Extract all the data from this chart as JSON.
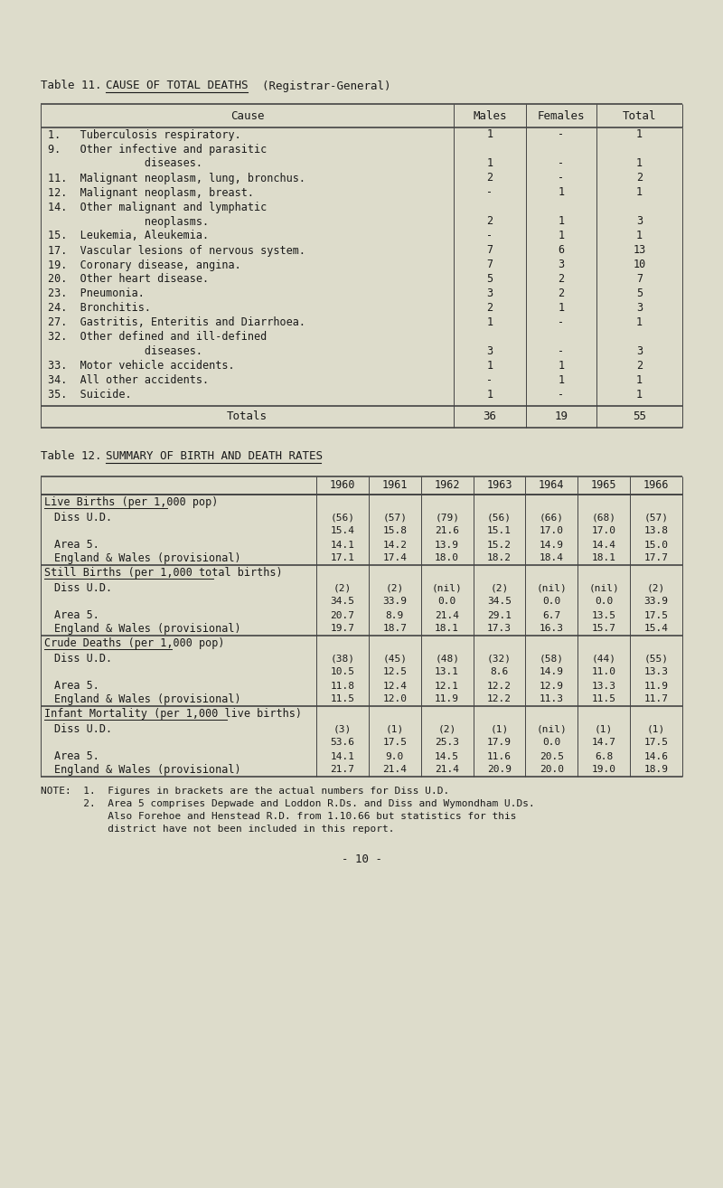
{
  "bg_color": "#dddccb",
  "title11": "Table 11.  CAUSE OF TOTAL DEATHS  (Registrar-General)",
  "title11_underline_start": "CAUSE OF TOTAL DEATHS",
  "title12": "Table 12.  SUMMARY OF BIRTH AND DEATH RATES",
  "t11_header": [
    "Cause",
    "Males",
    "Females",
    "Total"
  ],
  "t11_rows": [
    [
      "1.   Tuberculosis respiratory.",
      "1",
      "-",
      "1"
    ],
    [
      "9.   Other infective and parasitic",
      "",
      "",
      ""
    ],
    [
      "               diseases.",
      "1",
      "-",
      "1"
    ],
    [
      "11.  Malignant neoplasm, lung, bronchus.",
      "2",
      "-",
      "2"
    ],
    [
      "12.  Malignant neoplasm, breast.",
      "-",
      "1",
      "1"
    ],
    [
      "14.  Other malignant and lymphatic",
      "",
      "",
      ""
    ],
    [
      "               neoplasms.",
      "2",
      "1",
      "3"
    ],
    [
      "15.  Leukemia, Aleukemia.",
      "-",
      "1",
      "1"
    ],
    [
      "17.  Vascular lesions of nervous system.",
      "7",
      "6",
      "13"
    ],
    [
      "19.  Coronary disease, angina.",
      "7",
      "3",
      "10"
    ],
    [
      "20.  Other heart disease.",
      "5",
      "2",
      "7"
    ],
    [
      "23.  Pneumonia.",
      "3",
      "2",
      "5"
    ],
    [
      "24.  Bronchitis.",
      "2",
      "1",
      "3"
    ],
    [
      "27.  Gastritis, Enteritis and Diarrhoea.",
      "1",
      "-",
      "1"
    ],
    [
      "32.  Other defined and ill-defined",
      "",
      "",
      ""
    ],
    [
      "               diseases.",
      "3",
      "-",
      "3"
    ],
    [
      "33.  Motor vehicle accidents.",
      "1",
      "1",
      "2"
    ],
    [
      "34.  All other accidents.",
      "-",
      "1",
      "1"
    ],
    [
      "35.  Suicide.",
      "1",
      "-",
      "1"
    ]
  ],
  "t11_totals": [
    "Totals",
    "36",
    "19",
    "55"
  ],
  "t12_years": [
    "1960",
    "1961",
    "1962",
    "1963",
    "1964",
    "1965",
    "1966"
  ],
  "t12_sections": [
    {
      "header": "Live Births (per 1,000 pop)",
      "rows": [
        [
          "Diss U.D.",
          "(56)",
          "(57)",
          "(79)",
          "(56)",
          "(66)",
          "(68)",
          "(57)"
        ],
        [
          "",
          "15.4",
          "15.8",
          "21.6",
          "15.1",
          "17.0",
          "17.0",
          "13.8"
        ],
        [
          "Area 5.",
          "14.1",
          "14.2",
          "13.9",
          "15.2",
          "14.9",
          "14.4",
          "15.0"
        ],
        [
          "England & Wales (provisional)",
          "17.1",
          "17.4",
          "18.0",
          "18.2",
          "18.4",
          "18.1",
          "17.7"
        ]
      ]
    },
    {
      "header": "Still Births (per 1,000 total births)",
      "rows": [
        [
          "Diss U.D.",
          "(2)",
          "(2)",
          "(nil)",
          "(2)",
          "(nil)",
          "(nil)",
          "(2)"
        ],
        [
          "",
          "34.5",
          "33.9",
          "0.0",
          "34.5",
          "0.0",
          "0.0",
          "33.9"
        ],
        [
          "Area 5.",
          "20.7",
          "8.9",
          "21.4",
          "29.1",
          "6.7",
          "13.5",
          "17.5"
        ],
        [
          "England & Wales (provisional)",
          "19.7",
          "18.7",
          "18.1",
          "17.3",
          "16.3",
          "15.7",
          "15.4"
        ]
      ]
    },
    {
      "header": "Crude Deaths (per 1,000 pop)",
      "rows": [
        [
          "Diss U.D.",
          "(38)",
          "(45)",
          "(48)",
          "(32)",
          "(58)",
          "(44)",
          "(55)"
        ],
        [
          "",
          "10.5",
          "12.5",
          "13.1",
          "8.6",
          "14.9",
          "11.0",
          "13.3"
        ],
        [
          "Area 5.",
          "11.8",
          "12.4",
          "12.1",
          "12.2",
          "12.9",
          "13.3",
          "11.9"
        ],
        [
          "England & Wales (provisional)",
          "11.5",
          "12.0",
          "11.9",
          "12.2",
          "11.3",
          "11.5",
          "11.7"
        ]
      ]
    },
    {
      "header": "Infant Mortality (per 1,000 live births)",
      "rows": [
        [
          "Diss U.D.",
          "(3)",
          "(1)",
          "(2)",
          "(1)",
          "(nil)",
          "(1)",
          "(1)"
        ],
        [
          "",
          "53.6",
          "17.5",
          "25.3",
          "17.9",
          "0.0",
          "14.7",
          "17.5"
        ],
        [
          "Area 5.",
          "14.1",
          "9.0",
          "14.5",
          "11.6",
          "20.5",
          "6.8",
          "14.6"
        ],
        [
          "England & Wales (provisional)",
          "21.7",
          "21.4",
          "21.4",
          "20.9",
          "20.0",
          "19.0",
          "18.9"
        ]
      ]
    }
  ],
  "notes": [
    "NOTE:  1.  Figures in brackets are the actual numbers for Diss U.D.",
    "       2.  Area 5 comprises Depwade and Loddon R.Ds. and Diss and Wymondham U.Ds.",
    "           Also Forehoe and Henstead R.D. from 1.10.66 but statistics for this",
    "           district have not been included in this report."
  ],
  "page_number": "- 10 -"
}
